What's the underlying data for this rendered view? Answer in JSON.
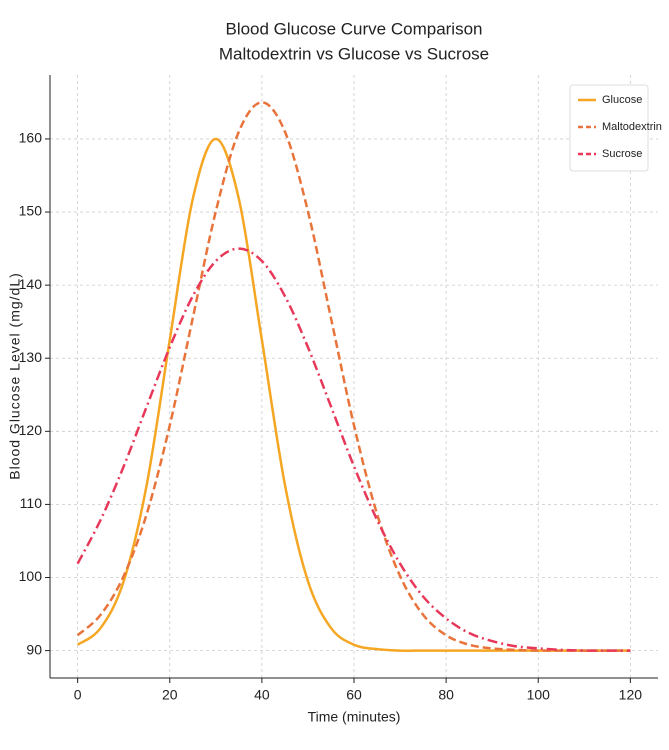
{
  "chart_data": {
    "type": "line",
    "title": "Blood Glucose Curve Comparison",
    "subtitle": "Maltodextrin vs Glucose vs Sucrose",
    "x_label": "Time (minutes)",
    "y_label": "Blood Glucose Level (mg/dL)",
    "x": [
      0,
      5,
      10,
      15,
      20,
      25,
      30,
      35,
      40,
      45,
      50,
      55,
      60,
      65,
      70,
      75,
      80,
      85,
      90,
      95,
      100,
      105,
      110,
      115,
      120
    ],
    "series": [
      {
        "name": "Glucose",
        "color": "#f5a623",
        "linestyle": "solid",
        "values": [
          90.8,
          93.1,
          99.5,
          112.7,
          132.5,
          151.8,
          160,
          151.8,
          132.5,
          112.7,
          99.5,
          93.1,
          90.8,
          90.2,
          90.0,
          90.0,
          90.0,
          90.0,
          90.0,
          90.0,
          90.0,
          90.0,
          90.0,
          90.0,
          90.0
        ]
      },
      {
        "name": "Maltodextrin",
        "color": "#e8743b",
        "linestyle": "dashed",
        "values": [
          92.1,
          94.9,
          100.2,
          108.7,
          120.8,
          135.5,
          150.1,
          161.0,
          165,
          161.0,
          150.1,
          135.5,
          120.8,
          108.7,
          100.2,
          94.9,
          92.1,
          90.8,
          90.3,
          90.1,
          90.0,
          90.0,
          90.0,
          90.0,
          90.0
        ]
      },
      {
        "name": "Sucrose",
        "color": "#e8385a",
        "linestyle": "dashdot",
        "values": [
          101.9,
          107.9,
          115.2,
          123.4,
          131.5,
          138.5,
          143.3,
          145,
          143.3,
          138.5,
          131.5,
          123.4,
          115.2,
          107.9,
          101.9,
          97.4,
          94.4,
          92.4,
          91.3,
          90.6,
          90.3,
          90.1,
          90.0,
          90.0,
          90.0
        ]
      }
    ],
    "xlim": [
      -6,
      126
    ],
    "xticks": [
      0,
      20,
      40,
      60,
      80,
      100,
      120
    ],
    "ylim": [
      86.25,
      168.75
    ],
    "yticks": [
      90,
      100,
      110,
      120,
      130,
      140,
      150,
      160
    ],
    "grid": true,
    "legend": "upper right"
  }
}
